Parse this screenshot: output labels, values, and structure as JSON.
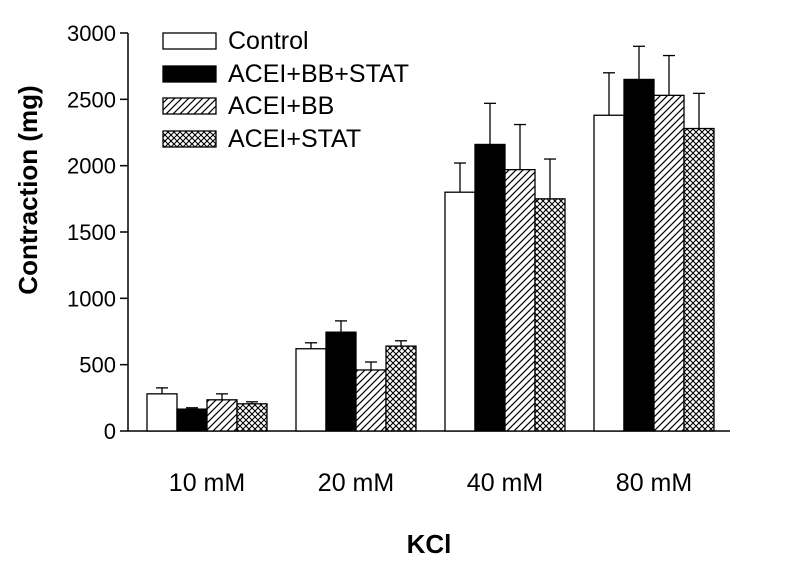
{
  "chart_data": {
    "type": "bar",
    "xlabel": "KCl",
    "ylabel": "Contraction (mg)",
    "categories": [
      "10 mM",
      "20 mM",
      "40 mM",
      "80 mM"
    ],
    "ylim": [
      0,
      3000
    ],
    "yticks": [
      0,
      500,
      1000,
      1500,
      2000,
      2500,
      3000
    ],
    "grid": false,
    "legend_position": "top-left",
    "series": [
      {
        "name": "Control",
        "fill": "white",
        "values": [
          280,
          620,
          1800,
          2380
        ],
        "errors": [
          45,
          45,
          220,
          320
        ]
      },
      {
        "name": "ACEI+BB+STAT",
        "fill": "black",
        "values": [
          165,
          745,
          2160,
          2650
        ],
        "errors": [
          10,
          85,
          310,
          250
        ]
      },
      {
        "name": "ACEI+BB",
        "fill": "diagonal-hatch",
        "values": [
          235,
          460,
          1970,
          2530
        ],
        "errors": [
          45,
          60,
          340,
          300
        ]
      },
      {
        "name": "ACEI+STAT",
        "fill": "crosshatch",
        "values": [
          205,
          640,
          1750,
          2280
        ],
        "errors": [
          15,
          40,
          300,
          265
        ]
      }
    ]
  }
}
